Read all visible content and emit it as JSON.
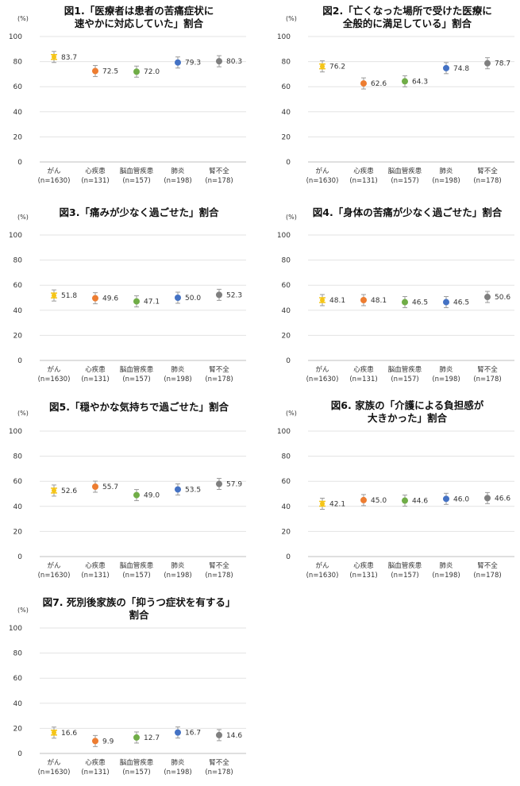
{
  "unit": "(%)",
  "colors": {
    "がん": "#f5c518",
    "心疾患": "#ed7d31",
    "脳血管疾患": "#70ad47",
    "肺炎": "#4472c4",
    "腎不全": "#7f7f7f"
  },
  "chart_data": [
    {
      "type": "scatter",
      "title_lines": [
        "図1.「医療者は患者の苦痛症状に",
        "速やかに対応していた」割合"
      ],
      "categories": [
        "がん",
        "心疾患",
        "脳血管疾患",
        "肺炎",
        "腎不全"
      ],
      "n_labels": [
        "(n=1630)",
        "(n=131)",
        "(n=157)",
        "(n=198)",
        "(n=178)"
      ],
      "values": [
        83.7,
        72.5,
        72.0,
        79.3,
        80.3
      ],
      "value_labels": [
        "83.7",
        "72.5",
        "72.0",
        "79.3",
        "80.3"
      ],
      "ylim": [
        0,
        100
      ],
      "yticks": [
        0,
        20,
        40,
        60,
        80,
        100
      ]
    },
    {
      "type": "scatter",
      "title_lines": [
        "図2.「亡くなった場所で受けた医療に",
        "全般的に満足している」割合"
      ],
      "categories": [
        "がん",
        "心疾患",
        "脳血管疾患",
        "肺炎",
        "腎不全"
      ],
      "n_labels": [
        "(n=1630)",
        "(n=131)",
        "(n=157)",
        "(n=198)",
        "(n=178)"
      ],
      "values": [
        76.2,
        62.6,
        64.3,
        74.8,
        78.7
      ],
      "value_labels": [
        "76.2",
        "62.6",
        "64.3",
        "74.8",
        "78.7"
      ],
      "ylim": [
        0,
        100
      ],
      "yticks": [
        0,
        20,
        40,
        60,
        80,
        100
      ]
    },
    {
      "type": "scatter",
      "title_lines": [
        "図3.「痛みが少なく過ごせた」割合"
      ],
      "categories": [
        "がん",
        "心疾患",
        "脳血管疾患",
        "肺炎",
        "腎不全"
      ],
      "n_labels": [
        "(n=1630)",
        "(n=131)",
        "(n=157)",
        "(n=198)",
        "(n=178)"
      ],
      "values": [
        51.8,
        49.6,
        47.1,
        50.0,
        52.3
      ],
      "value_labels": [
        "51.8",
        "49.6",
        "47.1",
        "50.0",
        "52.3"
      ],
      "ylim": [
        0,
        100
      ],
      "yticks": [
        0,
        20,
        40,
        60,
        80,
        100
      ]
    },
    {
      "type": "scatter",
      "title_lines": [
        "図4.「身体の苦痛が少なく過ごせた」割合"
      ],
      "categories": [
        "がん",
        "心疾患",
        "脳血管疾患",
        "肺炎",
        "腎不全"
      ],
      "n_labels": [
        "(n=1630)",
        "(n=131)",
        "(n=157)",
        "(n=198)",
        "(n=178)"
      ],
      "values": [
        48.1,
        48.1,
        46.5,
        46.5,
        50.6
      ],
      "value_labels": [
        "48.1",
        "48.1",
        "46.5",
        "46.5",
        "50.6"
      ],
      "ylim": [
        0,
        100
      ],
      "yticks": [
        0,
        20,
        40,
        60,
        80,
        100
      ]
    },
    {
      "type": "scatter",
      "title_lines": [
        "図5.「穏やかな気持ちで過ごせた」割合"
      ],
      "categories": [
        "がん",
        "心疾患",
        "脳血管疾患",
        "肺炎",
        "腎不全"
      ],
      "n_labels": [
        "(n=1630)",
        "(n=131)",
        "(n=157)",
        "(n=198)",
        "(n=178)"
      ],
      "values": [
        52.6,
        55.7,
        49.0,
        53.5,
        57.9
      ],
      "value_labels": [
        "52.6",
        "55.7",
        "49.0",
        "53.5",
        "57.9"
      ],
      "ylim": [
        0,
        100
      ],
      "yticks": [
        0,
        20,
        40,
        60,
        80,
        100
      ]
    },
    {
      "type": "scatter",
      "title_lines": [
        "図6. 家族の「介護による負担感が",
        "大きかった」割合"
      ],
      "categories": [
        "がん",
        "心疾患",
        "脳血管疾患",
        "肺炎",
        "腎不全"
      ],
      "n_labels": [
        "(n=1630)",
        "(n=131)",
        "(n=157)",
        "(n=198)",
        "(n=178)"
      ],
      "values": [
        42.1,
        45.0,
        44.6,
        46.0,
        46.6
      ],
      "value_labels": [
        "42.1",
        "45.0",
        "44.6",
        "46.0",
        "46.6"
      ],
      "ylim": [
        0,
        100
      ],
      "yticks": [
        0,
        20,
        40,
        60,
        80,
        100
      ]
    },
    {
      "type": "scatter",
      "title_lines": [
        "図7. 死別後家族の「抑うつ症状を有する」",
        "割合"
      ],
      "categories": [
        "がん",
        "心疾患",
        "脳血管疾患",
        "肺炎",
        "腎不全"
      ],
      "n_labels": [
        "(n=1630)",
        "(n=131)",
        "(n=157)",
        "(n=198)",
        "(n=178)"
      ],
      "values": [
        16.6,
        9.9,
        12.7,
        16.7,
        14.6
      ],
      "value_labels": [
        "16.6",
        "9.9",
        "12.7",
        "16.7",
        "14.6"
      ],
      "ylim": [
        0,
        100
      ],
      "yticks": [
        0,
        20,
        40,
        60,
        80,
        100
      ]
    }
  ]
}
